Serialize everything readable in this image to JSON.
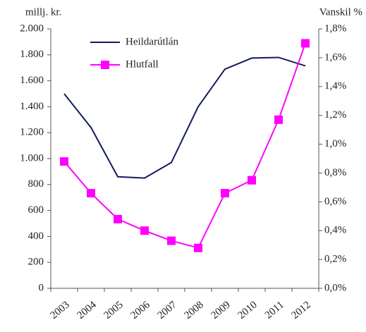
{
  "chart_data": {
    "type": "line",
    "y_label": "millj. kr.",
    "y2_label": "Vanskil %",
    "categories": [
      "2003",
      "2004",
      "2005",
      "2006",
      "2007",
      "2008",
      "2009",
      "2010",
      "2011",
      "2012"
    ],
    "series": [
      {
        "name": "Heildarútlán",
        "color": "#141c5c",
        "values": [
          1500,
          1240,
          860,
          850,
          970,
          1400,
          1690,
          1775,
          1780,
          1715
        ]
      },
      {
        "name": "Hlutfall",
        "color": "#ff00ff",
        "axis": "y2",
        "marker": "square",
        "values": [
          0.88,
          0.66,
          0.48,
          0.4,
          0.33,
          0.28,
          0.66,
          0.75,
          1.17,
          1.7
        ]
      }
    ],
    "ylim": [
      0,
      2000
    ],
    "yticks": [
      0,
      200,
      400,
      600,
      800,
      {
        "value": 1000,
        "label": "1.000"
      },
      {
        "value": 1200,
        "label": "1.200"
      },
      {
        "value": 1400,
        "label": "1.400"
      },
      {
        "value": 1600,
        "label": "1.600"
      },
      {
        "value": 1800,
        "label": "1.800"
      },
      {
        "value": 2000,
        "label": "2.000"
      }
    ],
    "y2lim": [
      0,
      1.8
    ],
    "y2ticks": [
      {
        "value": 0,
        "label": "0,0%"
      },
      {
        "value": 0.2,
        "label": "0,2%"
      },
      {
        "value": 0.4,
        "label": "0,4%"
      },
      {
        "value": 0.6,
        "label": "0,6%"
      },
      {
        "value": 0.8,
        "label": "0,8%"
      },
      {
        "value": 1.0,
        "label": "1,0%"
      },
      {
        "value": 1.2,
        "label": "1,2%"
      },
      {
        "value": 1.4,
        "label": "1,4%"
      },
      {
        "value": 1.6,
        "label": "1,6%"
      },
      {
        "value": 1.8,
        "label": "1,8%"
      }
    ],
    "grid": false,
    "legend": "upper left"
  }
}
